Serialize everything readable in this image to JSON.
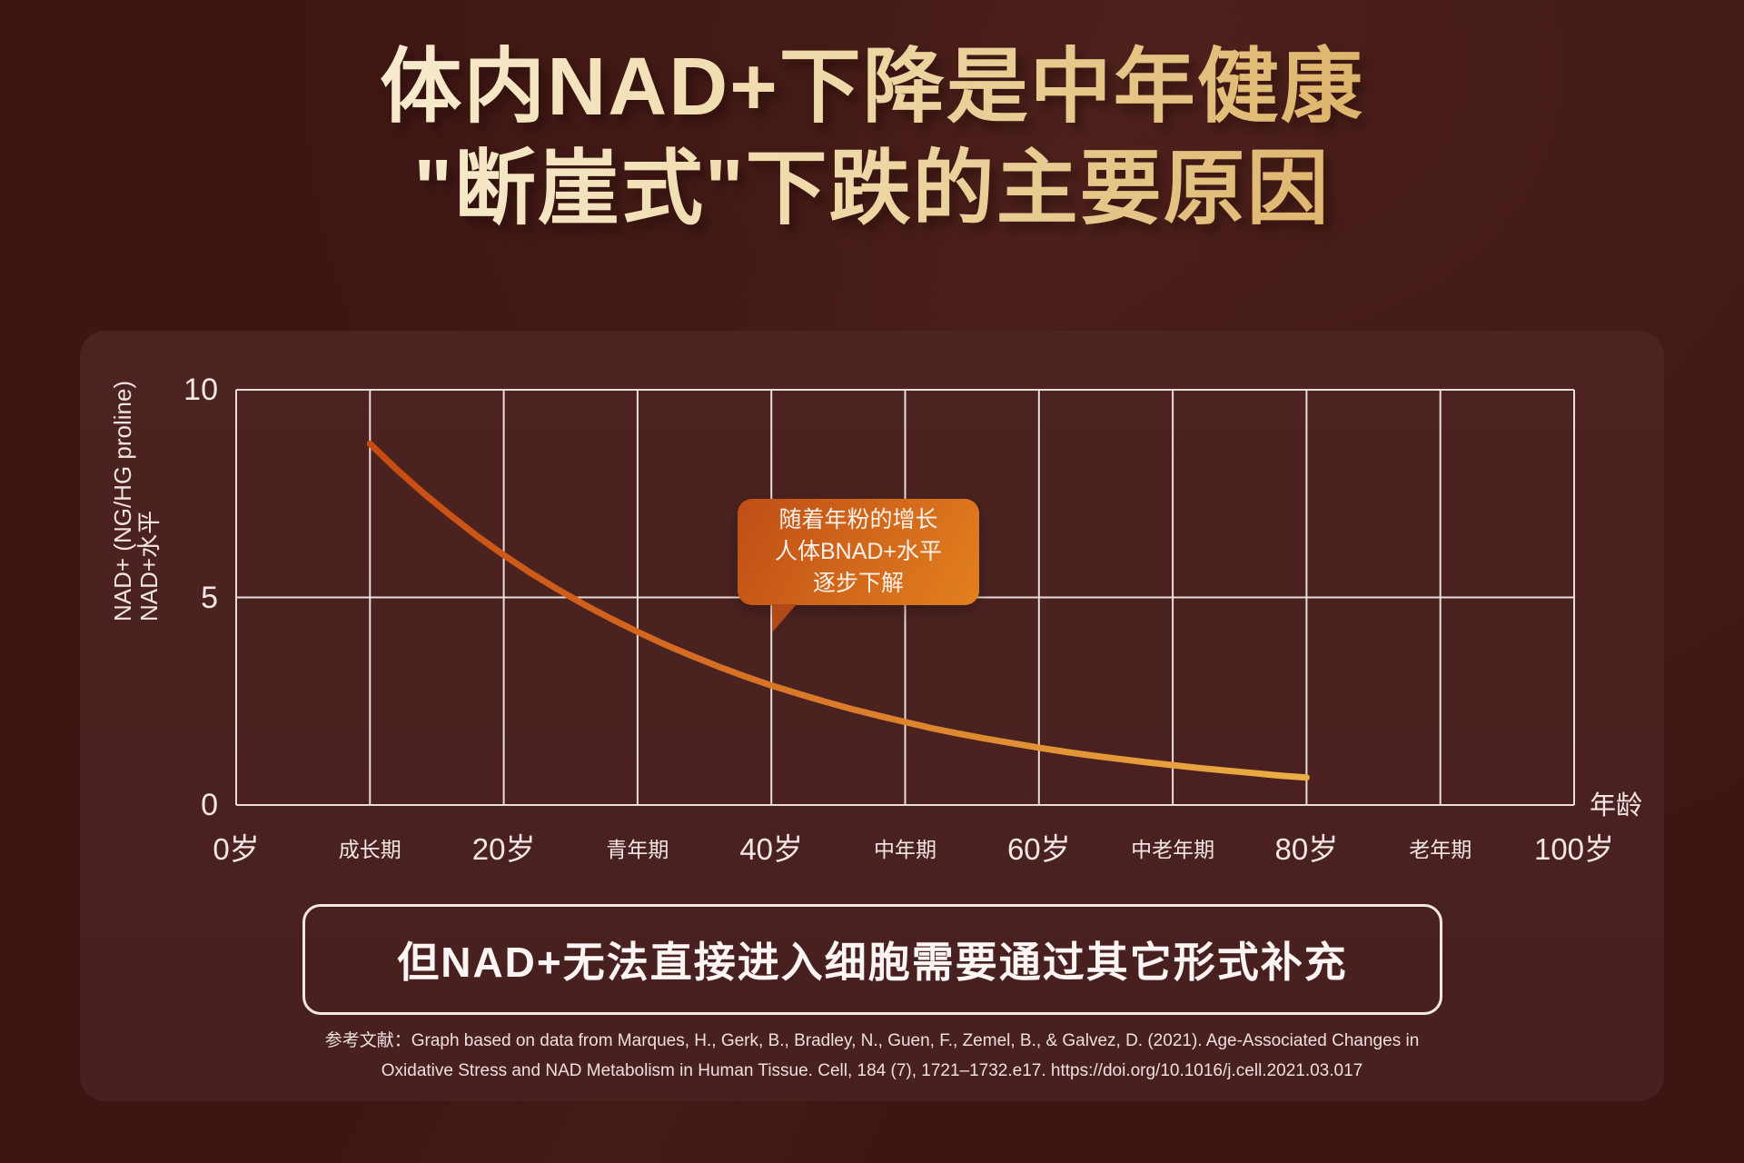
{
  "title": {
    "line1": "体内NAD+下降是中年健康",
    "line2": "\"断崖式\"下跌的主要原因"
  },
  "chart_data": {
    "type": "line",
    "xlabel": "年龄",
    "ylabel_line1": "NAD+ (NG/HG proline)",
    "ylabel_line2": "NAD+水平",
    "xlim": [
      0,
      100
    ],
    "ylim": [
      0,
      10
    ],
    "grid": true,
    "x_ticks": [
      {
        "age": 0,
        "label": "0岁",
        "major": true
      },
      {
        "age": 10,
        "label": "成长期",
        "major": false
      },
      {
        "age": 20,
        "label": "20岁",
        "major": true
      },
      {
        "age": 30,
        "label": "青年期",
        "major": false
      },
      {
        "age": 40,
        "label": "40岁",
        "major": true
      },
      {
        "age": 50,
        "label": "中年期",
        "major": false
      },
      {
        "age": 60,
        "label": "60岁",
        "major": true
      },
      {
        "age": 70,
        "label": "中老年期",
        "major": false
      },
      {
        "age": 80,
        "label": "80岁",
        "major": true
      },
      {
        "age": 90,
        "label": "老年期",
        "major": false
      },
      {
        "age": 100,
        "label": "100岁",
        "major": true
      }
    ],
    "y_ticks": [
      {
        "value": 0,
        "label": "0"
      },
      {
        "value": 5,
        "label": "5"
      },
      {
        "value": 10,
        "label": "10"
      }
    ],
    "series": [
      {
        "name": "NAD+水平",
        "color_start": "#c84a10",
        "color_end": "#ecae44",
        "points": [
          [
            10,
            8.7
          ],
          [
            12,
            8.08
          ],
          [
            14,
            7.51
          ],
          [
            16,
            6.98
          ],
          [
            18,
            6.48
          ],
          [
            20,
            6.02
          ],
          [
            22,
            5.59
          ],
          [
            24,
            5.2
          ],
          [
            26,
            4.83
          ],
          [
            28,
            4.49
          ],
          [
            30,
            4.17
          ],
          [
            32,
            3.87
          ],
          [
            34,
            3.6
          ],
          [
            36,
            3.34
          ],
          [
            38,
            3.1
          ],
          [
            40,
            2.88
          ],
          [
            42,
            2.68
          ],
          [
            44,
            2.49
          ],
          [
            46,
            2.31
          ],
          [
            48,
            2.15
          ],
          [
            50,
            2.0
          ],
          [
            52,
            1.85
          ],
          [
            54,
            1.72
          ],
          [
            56,
            1.6
          ],
          [
            58,
            1.49
          ],
          [
            60,
            1.38
          ],
          [
            62,
            1.28
          ],
          [
            64,
            1.19
          ],
          [
            66,
            1.11
          ],
          [
            68,
            1.03
          ],
          [
            70,
            0.96
          ],
          [
            72,
            0.89
          ],
          [
            74,
            0.83
          ],
          [
            76,
            0.77
          ],
          [
            78,
            0.71
          ],
          [
            80,
            0.66
          ]
        ]
      }
    ],
    "annotation": {
      "lines": [
        "随着年粉的增长",
        "人体BNAD+水平",
        "逐步下解"
      ]
    }
  },
  "banner": {
    "text": "但NAD+无法直接进入细胞需要通过其它形式补充"
  },
  "reference": {
    "line1": "参考文献：Graph based on data from Marques, H., Gerk, B., Bradley, N., Guen, F., Zemel, B., & Galvez, D. (2021). Age-Associated Changes in",
    "line2": "Oxidative Stress and NAD Metabolism in Human Tissue. Cell, 184 (7), 1721–1732.e17. https://doi.org/10.1016/j.cell.2021.03.017"
  },
  "colors": {
    "background": "#3d1613",
    "panel": "#4b221f",
    "grid": "#f2e7e5",
    "tick_text": "#f2e7e5",
    "title_gradient": [
      "#f9efd7",
      "#d7a552"
    ],
    "curve_gradient": [
      "#c84a10",
      "#ecae44"
    ],
    "callout_bg": [
      "#bf4e16",
      "#e2801f"
    ],
    "callout_tail": "#b04a18",
    "banner_border": "#f3e8e6",
    "banner_text": "#fcf5f3"
  }
}
